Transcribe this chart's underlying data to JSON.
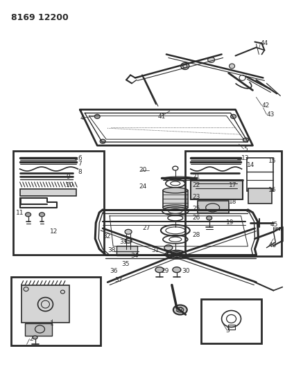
{
  "title": "8169 12200",
  "bg_color": "#f5f5f0",
  "line_color": "#2a2a2a",
  "fig_width": 4.11,
  "fig_height": 5.33,
  "dpi": 100
}
